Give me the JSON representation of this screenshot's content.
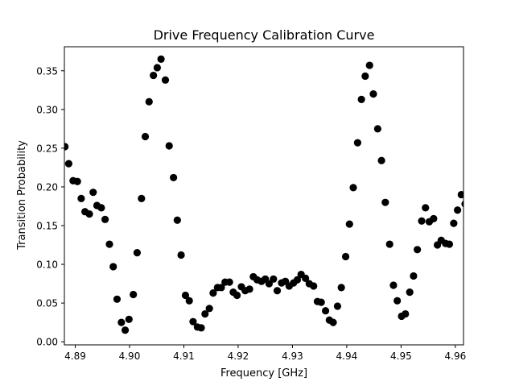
{
  "chart_data": {
    "type": "scatter",
    "title": "Drive Frequency Calibration Curve",
    "xlabel": "Frequency [GHz]",
    "ylabel": "Transition Probability",
    "xlim": [
      4.888,
      4.9615
    ],
    "ylim": [
      -0.004,
      0.381
    ],
    "xticks": [
      4.89,
      4.9,
      4.91,
      4.92,
      4.93,
      4.94,
      4.95,
      4.96
    ],
    "xtick_labels": [
      "4.89",
      "4.90",
      "4.91",
      "4.92",
      "4.93",
      "4.94",
      "4.95",
      "4.96"
    ],
    "yticks": [
      0.0,
      0.05,
      0.1,
      0.15,
      0.2,
      0.25,
      0.3,
      0.35
    ],
    "ytick_labels": [
      "0.00",
      "0.05",
      "0.10",
      "0.15",
      "0.20",
      "0.25",
      "0.30",
      "0.35"
    ],
    "grid": false,
    "marker_color": "#000000",
    "x": [
      4.8881,
      4.8888,
      4.8896,
      4.8904,
      4.8911,
      4.8918,
      4.8926,
      4.8933,
      4.894,
      4.8948,
      4.8955,
      4.8963,
      4.897,
      4.8977,
      4.8985,
      4.8992,
      4.8999,
      4.9007,
      4.9014,
      4.9022,
      4.9029,
      4.9036,
      4.9044,
      4.9051,
      4.9058,
      4.9066,
      4.9073,
      4.9081,
      4.9088,
      4.9095,
      4.9103,
      4.911,
      4.9117,
      4.9125,
      4.9132,
      4.9139,
      4.9147,
      4.9154,
      4.9162,
      4.9169,
      4.9176,
      4.9184,
      4.9191,
      4.9198,
      4.9206,
      4.9213,
      4.9221,
      4.9228,
      4.9235,
      4.9243,
      4.925,
      4.9257,
      4.9265,
      4.9272,
      4.928,
      4.9287,
      4.9294,
      4.9302,
      4.9309,
      4.9316,
      4.9324,
      4.9331,
      4.9339,
      4.9346,
      4.9353,
      4.9361,
      4.9368,
      4.9375,
      4.9383,
      4.939,
      4.9398,
      4.9405,
      4.9412,
      4.942,
      4.9427,
      4.9434,
      4.9442,
      4.9449,
      4.9457,
      4.9464,
      4.9471,
      4.9479,
      4.9486,
      4.9493,
      4.9501,
      4.9508,
      4.9516,
      4.9523,
      4.953,
      4.9538,
      4.9545,
      4.9552,
      4.956,
      4.9567,
      4.9574,
      4.9582,
      4.9589,
      4.9597,
      4.9604,
      4.9611,
      4.9618
    ],
    "y": [
      0.252,
      0.23,
      0.208,
      0.207,
      0.185,
      0.168,
      0.165,
      0.193,
      0.176,
      0.173,
      0.158,
      0.126,
      0.097,
      0.055,
      0.025,
      0.015,
      0.029,
      0.061,
      0.115,
      0.185,
      0.265,
      0.31,
      0.344,
      0.354,
      0.365,
      0.338,
      0.253,
      0.212,
      0.157,
      0.112,
      0.06,
      0.053,
      0.026,
      0.019,
      0.018,
      0.036,
      0.043,
      0.063,
      0.07,
      0.07,
      0.077,
      0.077,
      0.064,
      0.06,
      0.071,
      0.066,
      0.068,
      0.084,
      0.08,
      0.078,
      0.081,
      0.075,
      0.081,
      0.066,
      0.076,
      0.078,
      0.072,
      0.076,
      0.08,
      0.087,
      0.082,
      0.075,
      0.072,
      0.052,
      0.051,
      0.04,
      0.028,
      0.025,
      0.046,
      0.07,
      0.11,
      0.152,
      0.199,
      0.257,
      0.313,
      0.343,
      0.357,
      0.32,
      0.275,
      0.234,
      0.18,
      0.126,
      0.073,
      0.053,
      0.033,
      0.036,
      0.064,
      0.085,
      0.119,
      0.156,
      0.173,
      0.155,
      0.159,
      0.125,
      0.131,
      0.127,
      0.126,
      0.153,
      0.17,
      0.19,
      0.178
    ]
  }
}
